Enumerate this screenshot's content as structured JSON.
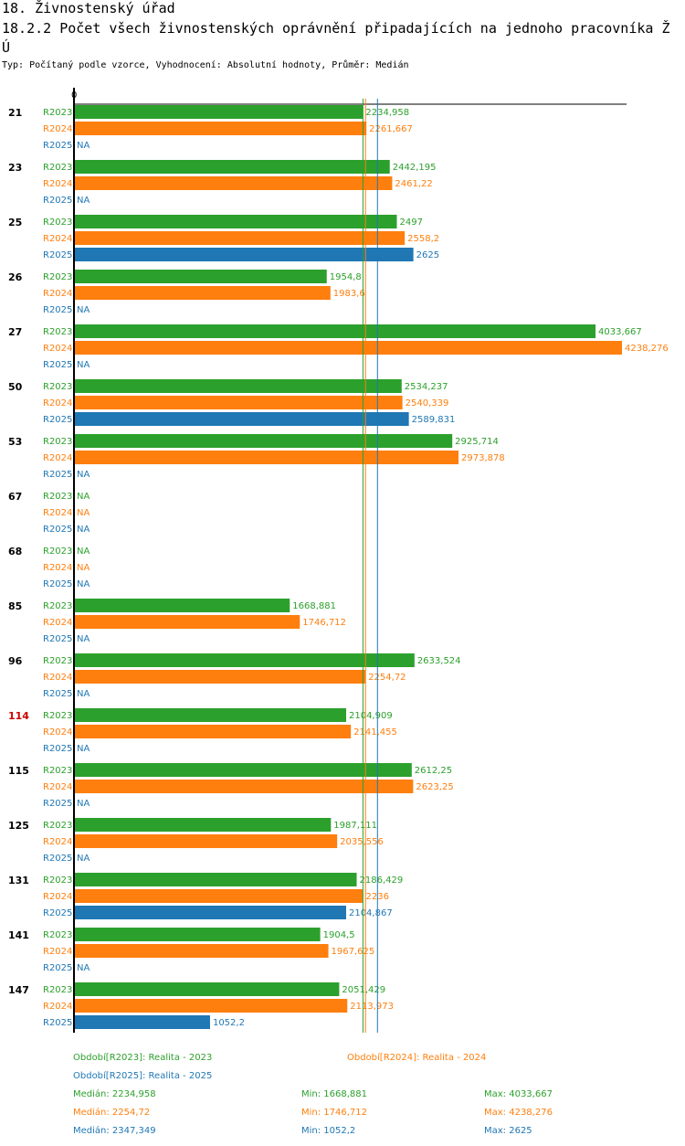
{
  "page": {
    "title": "18. Živnostenský úřad",
    "subtitle": "18.2.2 Počet všech živnostenských oprávnění připadajících na jednoho pracovníka ŽÚ",
    "type_line": "Typ: Počítaný podle vzorce, Vyhodnocení: Absolutní hodnoty, Průměr: Medián"
  },
  "chart_data": {
    "type": "bar",
    "orientation": "horizontal",
    "xlim": [
      0,
      4238.276
    ],
    "axis_zero_label": "0",
    "na_label": "NA",
    "colors": {
      "R2023": "#2ca02c",
      "R2024": "#ff7f0e",
      "R2025": "#1f77b4",
      "highlight": "#cc0000"
    },
    "series_names": [
      "R2023",
      "R2024",
      "R2025"
    ],
    "groups": [
      {
        "label": "21",
        "highlight": false,
        "values": [
          2234.958,
          2261.667,
          null
        ],
        "labels": [
          "2234,958",
          "2261,667",
          "NA"
        ]
      },
      {
        "label": "23",
        "highlight": false,
        "values": [
          2442.195,
          2461.22,
          null
        ],
        "labels": [
          "2442,195",
          "2461,22",
          "NA"
        ]
      },
      {
        "label": "25",
        "highlight": false,
        "values": [
          2497,
          2558.2,
          2625
        ],
        "labels": [
          "2497",
          "2558,2",
          "2625"
        ]
      },
      {
        "label": "26",
        "highlight": false,
        "values": [
          1954.8,
          1983.6,
          null
        ],
        "labels": [
          "1954,8",
          "1983,6",
          "NA"
        ]
      },
      {
        "label": "27",
        "highlight": false,
        "values": [
          4033.667,
          4238.276,
          null
        ],
        "labels": [
          "4033,667",
          "4238,276",
          "NA"
        ]
      },
      {
        "label": "50",
        "highlight": false,
        "values": [
          2534.237,
          2540.339,
          2589.831
        ],
        "labels": [
          "2534,237",
          "2540,339",
          "2589,831"
        ]
      },
      {
        "label": "53",
        "highlight": false,
        "values": [
          2925.714,
          2973.878,
          null
        ],
        "labels": [
          "2925,714",
          "2973,878",
          "NA"
        ]
      },
      {
        "label": "67",
        "highlight": false,
        "values": [
          null,
          null,
          null
        ],
        "labels": [
          "NA",
          "NA",
          "NA"
        ]
      },
      {
        "label": "68",
        "highlight": false,
        "values": [
          null,
          null,
          null
        ],
        "labels": [
          "NA",
          "NA",
          "NA"
        ]
      },
      {
        "label": "85",
        "highlight": false,
        "values": [
          1668.881,
          1746.712,
          null
        ],
        "labels": [
          "1668,881",
          "1746,712",
          "NA"
        ]
      },
      {
        "label": "96",
        "highlight": false,
        "values": [
          2633.524,
          2254.72,
          null
        ],
        "labels": [
          "2633,524",
          "2254,72",
          "NA"
        ]
      },
      {
        "label": "114",
        "highlight": true,
        "values": [
          2104.909,
          2141.455,
          null
        ],
        "labels": [
          "2104,909",
          "2141,455",
          "NA"
        ]
      },
      {
        "label": "115",
        "highlight": false,
        "values": [
          2612.25,
          2623.25,
          null
        ],
        "labels": [
          "2612,25",
          "2623,25",
          "NA"
        ]
      },
      {
        "label": "125",
        "highlight": false,
        "values": [
          1987.111,
          2035.556,
          null
        ],
        "labels": [
          "1987,111",
          "2035,556",
          "NA"
        ]
      },
      {
        "label": "131",
        "highlight": false,
        "values": [
          2186.429,
          2236,
          2104.867
        ],
        "labels": [
          "2186,429",
          "2236",
          "2104,867"
        ]
      },
      {
        "label": "141",
        "highlight": false,
        "values": [
          1904.5,
          1967.625,
          null
        ],
        "labels": [
          "1904,5",
          "1967,625",
          "NA"
        ]
      },
      {
        "label": "147",
        "highlight": false,
        "values": [
          2051.429,
          2113.973,
          1052.2
        ],
        "labels": [
          "2051,429",
          "2113,973",
          "1052,2"
        ]
      }
    ],
    "median_lines": [
      2234.958,
      2254.72,
      2347.349
    ],
    "legend": [
      {
        "text": "Období[R2023]: Realita - 2023",
        "series": "R2023"
      },
      {
        "text": "Období[R2024]: Realita - 2024",
        "series": "R2024"
      },
      {
        "text": "Období[R2025]: Realita - 2025",
        "series": "R2025"
      }
    ],
    "stats": [
      {
        "series": "R2023",
        "median": "Medián: 2234,958",
        "min": "Min: 1668,881",
        "max": "Max: 4033,667"
      },
      {
        "series": "R2024",
        "median": "Medián: 2254,72",
        "min": "Min: 1746,712",
        "max": "Max: 4238,276"
      },
      {
        "series": "R2025",
        "median": "Medián: 2347,349",
        "min": "Min: 1052,2",
        "max": "Max: 2625"
      }
    ]
  }
}
